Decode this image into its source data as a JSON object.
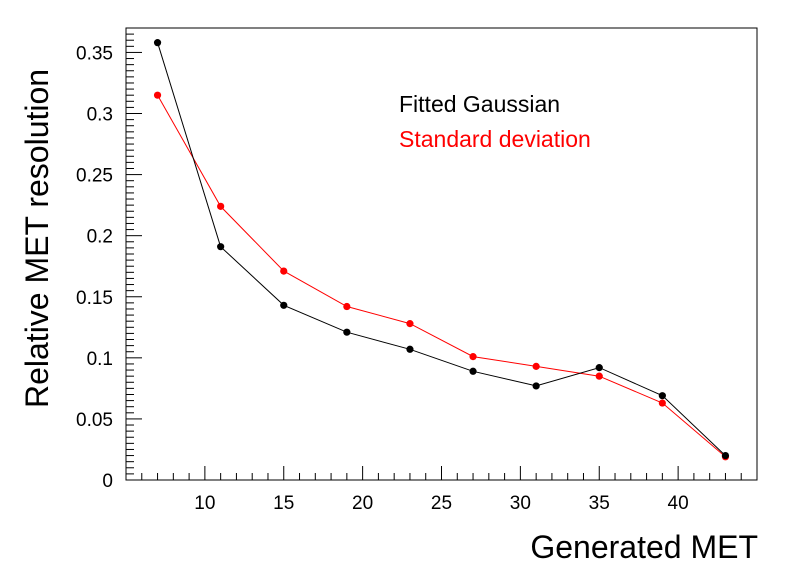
{
  "chart_data": {
    "type": "line",
    "title": "",
    "xlabel": "Generated MET",
    "ylabel": "Relative MET resolution",
    "xlim": [
      5,
      45
    ],
    "ylim": [
      0,
      0.37
    ],
    "x": [
      7,
      11,
      15,
      19,
      23,
      27,
      31,
      35,
      39,
      43
    ],
    "xticks": [
      10,
      15,
      20,
      25,
      30,
      35,
      40
    ],
    "xtick_labels": [
      "10",
      "15",
      "20",
      "25",
      "30",
      "35",
      "40"
    ],
    "yticks": [
      0,
      0.05,
      0.1,
      0.15,
      0.2,
      0.25,
      0.3,
      0.35
    ],
    "ytick_labels": [
      "0",
      "0.05",
      "0.1",
      "0.15",
      "0.2",
      "0.25",
      "0.3",
      "0.35"
    ],
    "grid": false,
    "legend_position": "top-right",
    "series": [
      {
        "name": "Fitted Gaussian",
        "color": "#000000",
        "values": [
          0.358,
          0.191,
          0.143,
          0.121,
          0.107,
          0.089,
          0.077,
          0.092,
          0.069,
          0.02
        ]
      },
      {
        "name": "Standard deviation",
        "color": "#ff0000",
        "values": [
          0.315,
          0.224,
          0.171,
          0.142,
          0.128,
          0.101,
          0.093,
          0.085,
          0.063,
          0.019
        ]
      }
    ]
  }
}
